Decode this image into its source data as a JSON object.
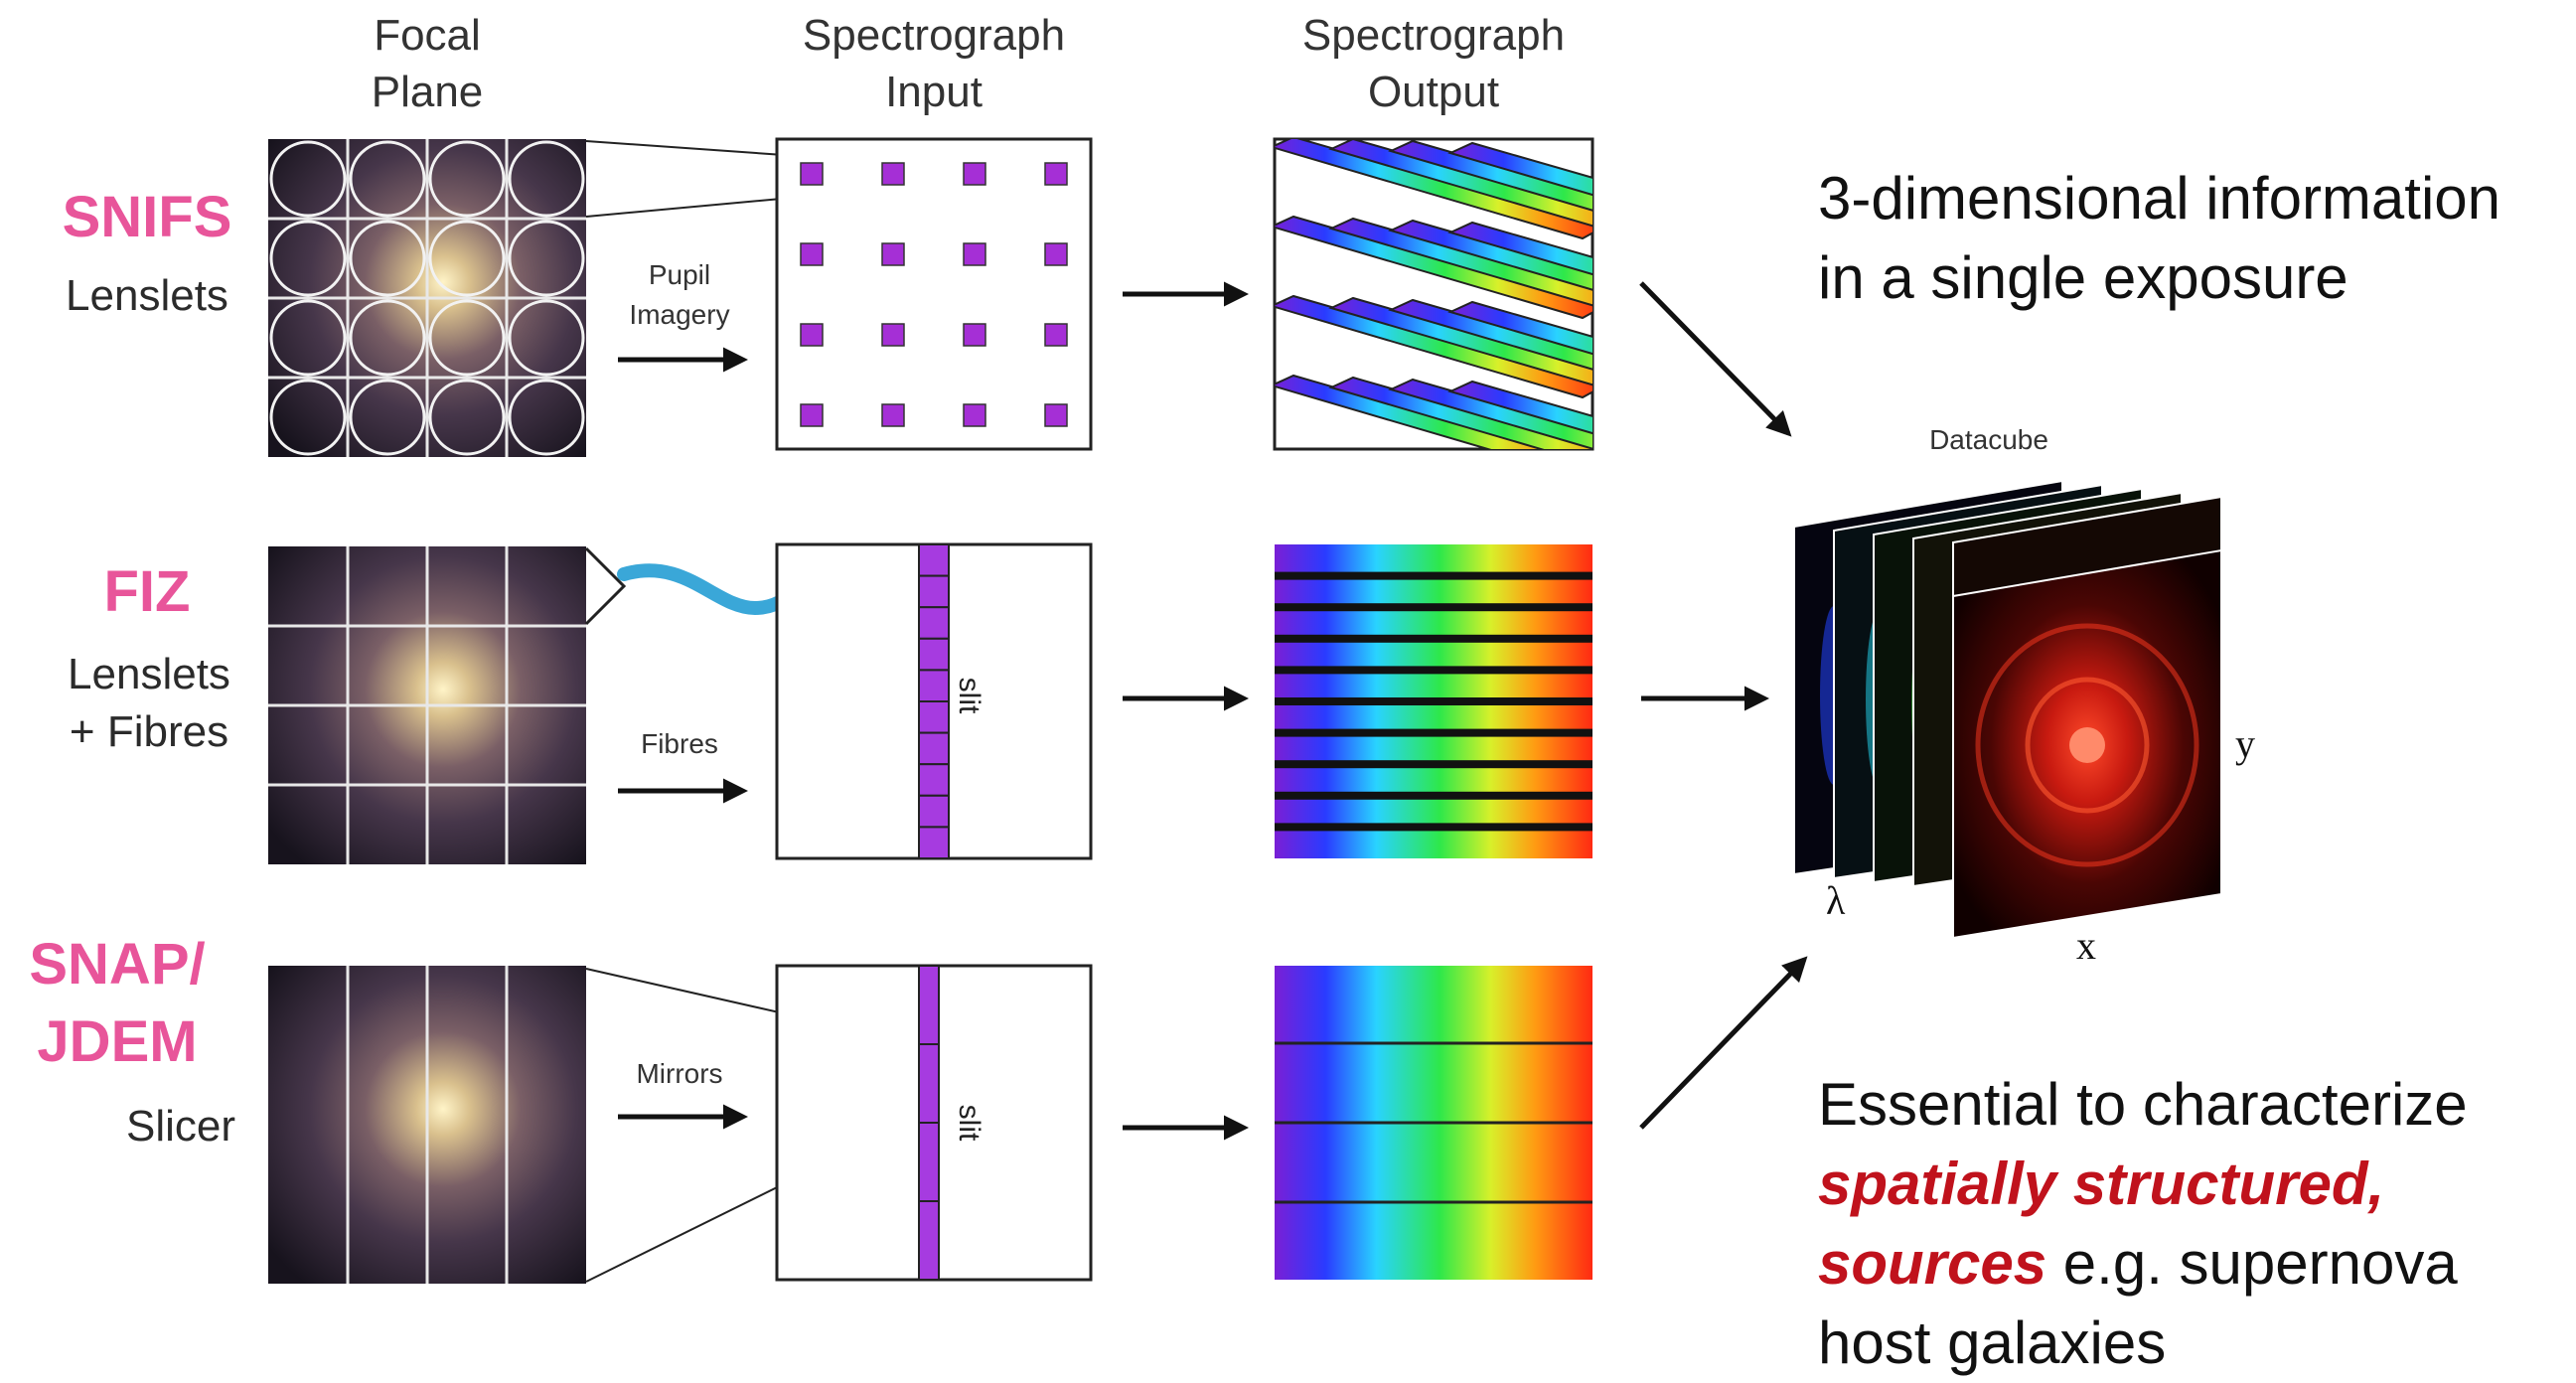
{
  "columns": {
    "focal_plane": [
      "Focal",
      "Plane"
    ],
    "spec_input": [
      "Spectrograph",
      "Input"
    ],
    "spec_output": [
      "Spectrograph",
      "Output"
    ]
  },
  "rows": [
    {
      "name": "SNIFS",
      "name_lines": [
        "SNIFS"
      ],
      "sub_lines": [
        "Lenslets"
      ],
      "method_lines": [
        "Pupil",
        "Imagery"
      ]
    },
    {
      "name": "FIZ",
      "name_lines": [
        "FIZ"
      ],
      "sub_lines": [
        "Lenslets",
        "+ Fibres"
      ],
      "method_lines": [
        "Fibres"
      ],
      "slit_label": "slit"
    },
    {
      "name": "SNAP/JDEM",
      "name_lines": [
        "SNAP/",
        "JDEM"
      ],
      "sub_lines": [
        "Slicer"
      ],
      "method_lines": [
        "Mirrors"
      ],
      "slit_label": "slit"
    }
  ],
  "datacube": {
    "title": "Datacube",
    "axis_x": "x",
    "axis_y": "y",
    "axis_lambda": "λ"
  },
  "notes": {
    "top": {
      "line1": "3-dimensional information",
      "line2": "in a single exposure"
    },
    "bottom": {
      "line1": "Essential to characterize",
      "line2_highlight": "spatially structured,",
      "line3_highlight": "sources",
      "line3_rest": " e.g. supernova",
      "line4": "host galaxies"
    }
  },
  "colors": {
    "instrument_name": "#e8559a",
    "highlight": "#c0121c",
    "lenslet_square": "#a52fd6",
    "fibre": "#3aa7d8",
    "slit": "#a63be0"
  }
}
